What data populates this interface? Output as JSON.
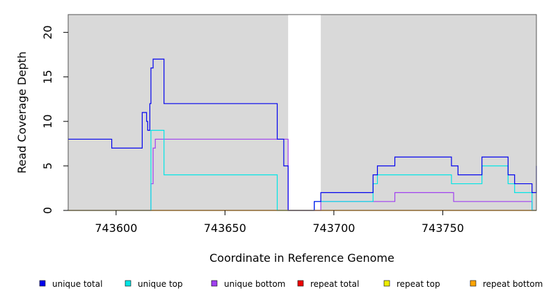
{
  "chart_data": {
    "type": "line",
    "step": true,
    "xlabel": "Coordinate in Reference Genome",
    "ylabel": "Read Coverage Depth",
    "xlim": [
      743578,
      743793
    ],
    "ylim": [
      0,
      22
    ],
    "x_ticks": [
      743600,
      743650,
      743700,
      743750
    ],
    "x_tick_labels": [
      "743600",
      "743650",
      "743700",
      "743750"
    ],
    "y_ticks": [
      0,
      5,
      10,
      15,
      20
    ],
    "y_tick_labels": [
      "0",
      "5",
      "10",
      "15",
      "20"
    ],
    "shaded_regions": [
      {
        "x0": 743578,
        "x1": 743679,
        "color": "#d9d9d9"
      },
      {
        "x0": 743694,
        "x1": 743793,
        "color": "#d9d9d9"
      }
    ],
    "legend_position": "bottom",
    "series": [
      {
        "name": "unique total",
        "color": "#0000ee",
        "x": [
          743578,
          743598,
          743612,
          743614,
          743614.5,
          743615.5,
          743616,
          743617,
          743618,
          743622,
          743674,
          743677,
          743679,
          743691,
          743694,
          743718,
          743720,
          743728,
          743754,
          743757,
          743768,
          743780,
          743783,
          743791,
          743793
        ],
        "y": [
          8,
          7,
          11,
          10,
          9,
          12,
          16,
          17,
          17,
          12,
          8,
          5,
          0,
          1,
          2,
          4,
          5,
          6,
          5,
          4,
          6,
          4,
          3,
          2,
          5
        ]
      },
      {
        "name": "unique top",
        "color": "#00e5e5",
        "x": [
          743578,
          743612,
          743614,
          743614.5,
          743616,
          743622,
          743674,
          743679,
          743691,
          743694,
          743718,
          743720,
          743754,
          743768,
          743780,
          743783,
          743791,
          743793
        ],
        "y": [
          0,
          0,
          0,
          0,
          9,
          4,
          0,
          0,
          1,
          1,
          3,
          4,
          3,
          5,
          3,
          2,
          0,
          0
        ]
      },
      {
        "name": "unique bottom",
        "color": "#a040f0",
        "x": [
          743578,
          743616,
          743617,
          743618,
          743679,
          743694,
          743728,
          743755,
          743791,
          743793
        ],
        "y": [
          0,
          3,
          7,
          8,
          0,
          1,
          2,
          1,
          0,
          0
        ]
      },
      {
        "name": "repeat total",
        "color": "#ee0000",
        "x": [
          743578,
          743793
        ],
        "y": [
          0,
          0
        ]
      },
      {
        "name": "repeat top",
        "color": "#eeee00",
        "x": [
          743578,
          743793
        ],
        "y": [
          0,
          0
        ]
      },
      {
        "name": "repeat bottom",
        "color": "#ffa500",
        "x": [
          743578,
          743793
        ],
        "y": [
          0,
          0
        ]
      }
    ]
  }
}
